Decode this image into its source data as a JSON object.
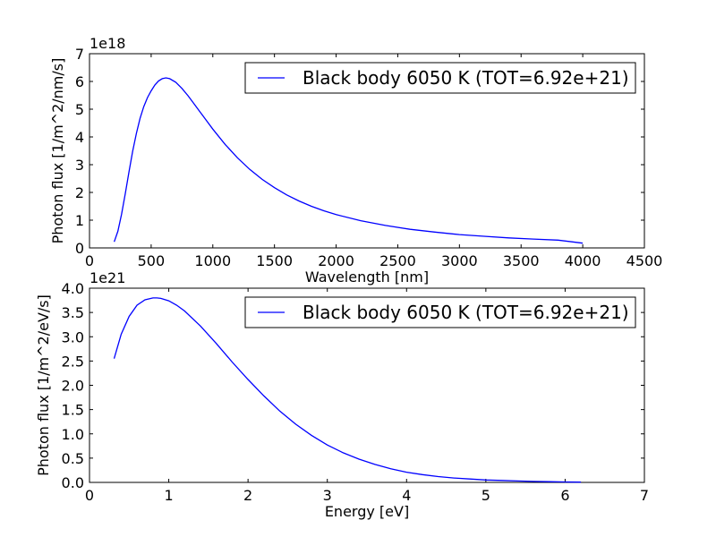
{
  "colors": {
    "series": "#0000ff",
    "axes": "#000000",
    "background": "#ffffff"
  },
  "chart_data": [
    {
      "type": "line",
      "xlabel": "Wavelength [nm]",
      "ylabel": "Photon flux [1/m^2/nm/s]",
      "y_offset_label": "1e18",
      "xlim": [
        0,
        4500
      ],
      "ylim": [
        0,
        7
      ],
      "xticks": [
        "0",
        "500",
        "1000",
        "1500",
        "2000",
        "2500",
        "3000",
        "3500",
        "4000",
        "4500"
      ],
      "yticks": [
        "0",
        "1",
        "2",
        "3",
        "4",
        "5",
        "6",
        "7"
      ],
      "legend_position": "top-right",
      "grid": false,
      "series": [
        {
          "name": "Black body 6050 K (TOT=6.92e+21)",
          "x": [
            200,
            230,
            260,
            290,
            320,
            350,
            380,
            410,
            440,
            470,
            500,
            530,
            560,
            590,
            620,
            650,
            700,
            750,
            800,
            850,
            900,
            950,
            1000,
            1100,
            1200,
            1300,
            1400,
            1500,
            1600,
            1700,
            1800,
            1900,
            2000,
            2200,
            2400,
            2600,
            2800,
            3000,
            3200,
            3400,
            3600,
            3800,
            4000
          ],
          "y": [
            0.22,
            0.6,
            1.21,
            1.96,
            2.74,
            3.48,
            4.13,
            4.67,
            5.09,
            5.42,
            5.66,
            5.87,
            6.02,
            6.1,
            6.13,
            6.1,
            5.97,
            5.75,
            5.48,
            5.18,
            4.88,
            4.58,
            4.28,
            3.73,
            3.25,
            2.83,
            2.47,
            2.17,
            1.91,
            1.69,
            1.5,
            1.34,
            1.2,
            0.98,
            0.81,
            0.67,
            0.57,
            0.48,
            0.42,
            0.36,
            0.32,
            0.28,
            0.17
          ]
        }
      ]
    },
    {
      "type": "line",
      "xlabel": "Energy [eV]",
      "ylabel": "Photon flux [1/m^2/eV/s]",
      "y_offset_label": "1e21",
      "xlim": [
        0,
        7
      ],
      "ylim": [
        0,
        4
      ],
      "xticks": [
        "0",
        "1",
        "2",
        "3",
        "4",
        "5",
        "6",
        "7"
      ],
      "yticks": [
        "0.0",
        "0.5",
        "1.0",
        "1.5",
        "2.0",
        "2.5",
        "3.0",
        "3.5",
        "4.0"
      ],
      "legend_position": "top-right",
      "grid": false,
      "series": [
        {
          "name": "Black body 6050 K (TOT=6.92e+21)",
          "x": [
            0.31,
            0.4,
            0.5,
            0.6,
            0.7,
            0.8,
            0.85,
            0.9,
            1.0,
            1.1,
            1.2,
            1.4,
            1.6,
            1.8,
            2.0,
            2.2,
            2.4,
            2.6,
            2.8,
            3.0,
            3.2,
            3.4,
            3.6,
            3.8,
            4.0,
            4.2,
            4.4,
            4.6,
            4.8,
            5.0,
            5.2,
            5.4,
            5.6,
            5.8,
            6.0,
            6.2
          ],
          "y": [
            2.55,
            3.05,
            3.42,
            3.65,
            3.76,
            3.8,
            3.8,
            3.79,
            3.74,
            3.65,
            3.53,
            3.22,
            2.86,
            2.48,
            2.12,
            1.78,
            1.47,
            1.2,
            0.97,
            0.77,
            0.61,
            0.48,
            0.37,
            0.28,
            0.21,
            0.16,
            0.12,
            0.09,
            0.07,
            0.05,
            0.04,
            0.03,
            0.02,
            0.015,
            0.01,
            0.005
          ]
        }
      ]
    }
  ]
}
